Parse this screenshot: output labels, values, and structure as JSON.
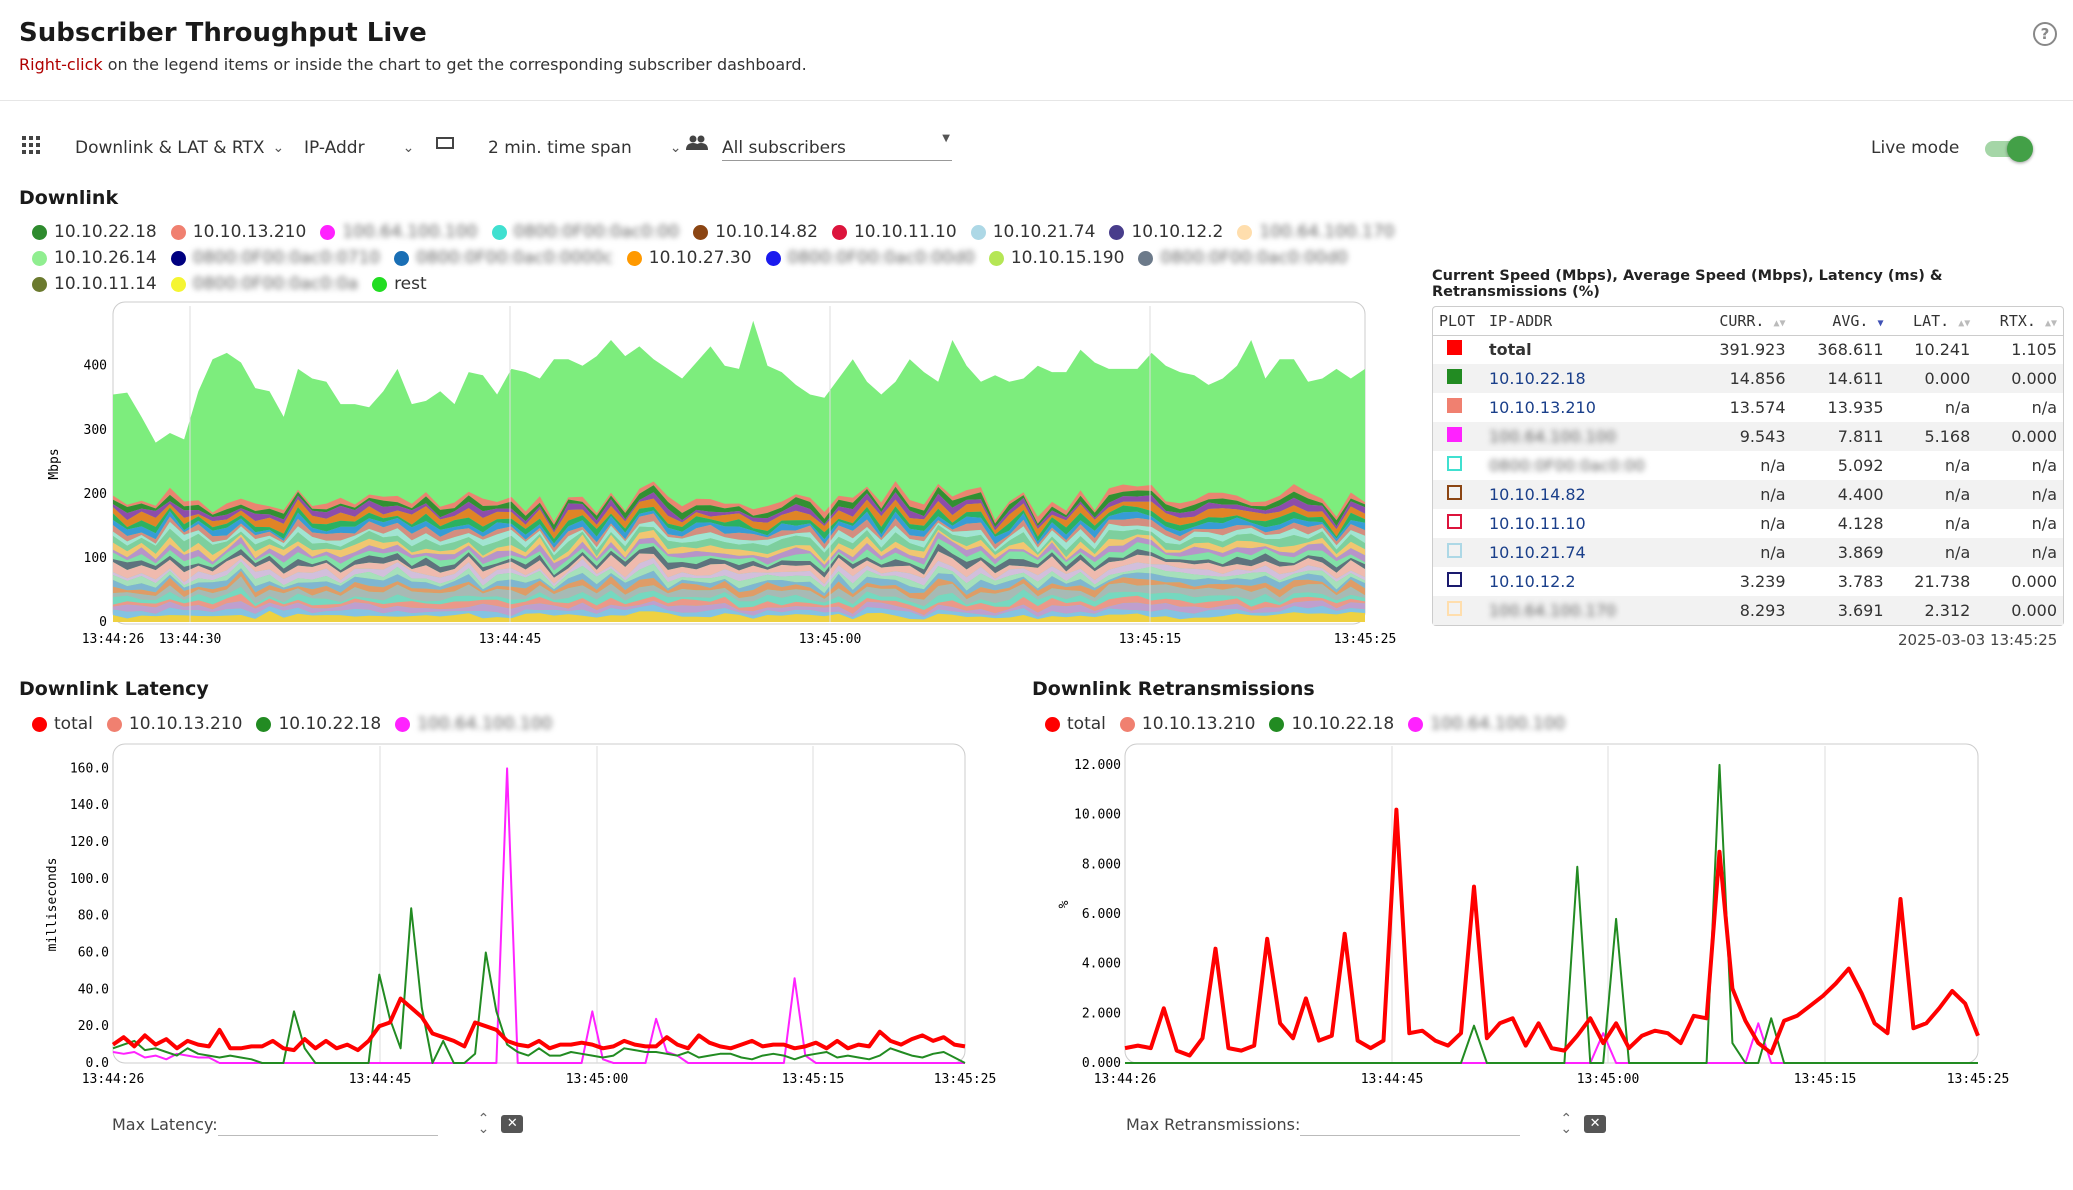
{
  "header": {
    "title": "Subscriber Throughput Live",
    "hint_highlight": "Right-click",
    "hint_rest": " on the legend items or inside the chart to get the corresponding subscriber dashboard.",
    "help_glyph": "?"
  },
  "toolbar": {
    "view_select": "Downlink & LAT & RTX",
    "id_select": "IP-Addr",
    "time_span": "2 min. time span",
    "subscribers": "All subscribers",
    "live_mode_label": "Live mode",
    "live_mode_on": true
  },
  "downlink": {
    "title": "Downlink",
    "legend": [
      {
        "label": "10.10.22.18",
        "color": "#2e8b2e"
      },
      {
        "label": "10.10.13.210",
        "color": "#f08070"
      },
      {
        "label": "100.64.100.100",
        "color": "#ff22ff",
        "blurred": true
      },
      {
        "label": "0800:0F00:0ac0:00",
        "color": "#40e0d0",
        "blurred": true
      },
      {
        "label": "10.10.14.82",
        "color": "#8b4513"
      },
      {
        "label": "10.10.11.10",
        "color": "#dc143c"
      },
      {
        "label": "10.10.21.74",
        "color": "#add8e6"
      },
      {
        "label": "10.10.12.2",
        "color": "#483d8b"
      },
      {
        "label": "100.64.100.170",
        "color": "#ffdead",
        "blurred": true
      },
      {
        "label": "10.10.26.14",
        "color": "#90ee90"
      },
      {
        "label": "0800:0F00:0ac0:0710",
        "color": "#000080",
        "blurred": true
      },
      {
        "label": "0800:0F00:0ac0:0000c",
        "color": "#1a6fb5",
        "blurred": true
      },
      {
        "label": "10.10.27.30",
        "color": "#ff9900"
      },
      {
        "label": "0800:0F00:0ac0:00d0",
        "color": "#1a1aee",
        "blurred": true
      },
      {
        "label": "10.10.15.190",
        "color": "#b5e655"
      },
      {
        "label": "0800:0F00:0ac0:00d0",
        "color": "#6c7a8a",
        "blurred": true
      },
      {
        "label": "10.10.11.14",
        "color": "#6b7a2e"
      },
      {
        "label": "0800:0F00:0ac0:0a",
        "color": "#f5f532",
        "blurred": true
      },
      {
        "label": "rest",
        "color": "#22dd22"
      }
    ],
    "ylabel": "Mbps",
    "yticks": [
      "400",
      "300",
      "200",
      "100",
      "0"
    ],
    "xticks": [
      "13:44:26",
      "13:44:30",
      "13:44:45",
      "13:45:00",
      "13:45:15",
      "13:45:25"
    ]
  },
  "table": {
    "caption": "Current Speed (Mbps), Average Speed (Mbps), Latency (ms) & Retransmissions (%)",
    "columns": [
      "PLOT",
      "IP-ADDR",
      "CURR.",
      "AVG.",
      "LAT.",
      "RTX."
    ],
    "rows": [
      {
        "color": "#ff0000",
        "filled": true,
        "ip": "total",
        "curr": "391.923",
        "avg": "368.611",
        "lat": "10.241",
        "rtx": "1.105",
        "bold": true
      },
      {
        "color": "#228b22",
        "filled": true,
        "ip": "10.10.22.18",
        "curr": "14.856",
        "avg": "14.611",
        "lat": "0.000",
        "rtx": "0.000"
      },
      {
        "color": "#f08070",
        "filled": true,
        "ip": "10.10.13.210",
        "curr": "13.574",
        "avg": "13.935",
        "lat": "n/a",
        "rtx": "n/a"
      },
      {
        "color": "#ff22ff",
        "filled": true,
        "ip": "100.64.100.100",
        "blurred": true,
        "curr": "9.543",
        "avg": "7.811",
        "lat": "5.168",
        "rtx": "0.000"
      },
      {
        "color": "#40e0d0",
        "filled": false,
        "ip": "0800:0F00:0ac0:00",
        "blurred": true,
        "curr": "n/a",
        "avg": "5.092",
        "lat": "n/a",
        "rtx": "n/a"
      },
      {
        "color": "#8b4513",
        "filled": false,
        "ip": "10.10.14.82",
        "curr": "n/a",
        "avg": "4.400",
        "lat": "n/a",
        "rtx": "n/a"
      },
      {
        "color": "#dc143c",
        "filled": false,
        "ip": "10.10.11.10",
        "curr": "n/a",
        "avg": "4.128",
        "lat": "n/a",
        "rtx": "n/a"
      },
      {
        "color": "#add8e6",
        "filled": false,
        "ip": "10.10.21.74",
        "curr": "n/a",
        "avg": "3.869",
        "lat": "n/a",
        "rtx": "n/a"
      },
      {
        "color": "#1a1a6e",
        "filled": false,
        "ip": "10.10.12.2",
        "curr": "3.239",
        "avg": "3.783",
        "lat": "21.738",
        "rtx": "0.000"
      },
      {
        "color": "#ffdead",
        "filled": false,
        "ip": "100.64.100.170",
        "blurred": true,
        "curr": "8.293",
        "avg": "3.691",
        "lat": "2.312",
        "rtx": "0.000"
      }
    ],
    "timestamp": "2025-03-03 13:45:25"
  },
  "latency": {
    "title": "Downlink Latency",
    "legend": [
      {
        "label": "total",
        "color": "#ff0000"
      },
      {
        "label": "10.10.13.210",
        "color": "#f08070"
      },
      {
        "label": "10.10.22.18",
        "color": "#228b22"
      },
      {
        "label": "100.64.100.100",
        "color": "#ff22ff",
        "blurred": true
      }
    ],
    "ylabel": "milliseconds",
    "yticks": [
      "160.0",
      "140.0",
      "120.0",
      "100.0",
      "80.0",
      "60.0",
      "40.0",
      "20.0",
      "0.0"
    ],
    "xticks": [
      "13:44:26",
      "13:44:45",
      "13:45:00",
      "13:45:15",
      "13:45:25"
    ],
    "max_label": "Max Latency:"
  },
  "retrans": {
    "title": "Downlink Retransmissions",
    "legend": [
      {
        "label": "total",
        "color": "#ff0000"
      },
      {
        "label": "10.10.13.210",
        "color": "#f08070"
      },
      {
        "label": "10.10.22.18",
        "color": "#228b22"
      },
      {
        "label": "100.64.100.100",
        "color": "#ff22ff",
        "blurred": true
      }
    ],
    "ylabel": "%",
    "yticks": [
      "12.000",
      "10.000",
      "8.000",
      "6.000",
      "4.000",
      "2.000",
      "0.000"
    ],
    "xticks": [
      "13:44:26",
      "13:44:45",
      "13:45:00",
      "13:45:15",
      "13:45:25"
    ],
    "max_label": "Max Retransmissions:"
  },
  "chart_data": [
    {
      "type": "area",
      "title": "Downlink",
      "ylabel": "Mbps",
      "ylim": [
        0,
        490
      ],
      "stacked": true,
      "x_range": [
        "13:44:26",
        "13:45:25"
      ],
      "total": [
        355,
        358,
        320,
        280,
        295,
        285,
        360,
        410,
        420,
        405,
        365,
        360,
        320,
        395,
        380,
        375,
        340,
        340,
        335,
        360,
        395,
        340,
        345,
        360,
        340,
        390,
        385,
        355,
        395,
        390,
        380,
        410,
        410,
        400,
        415,
        440,
        415,
        430,
        410,
        395,
        380,
        405,
        430,
        400,
        395,
        470,
        400,
        390,
        370,
        355,
        350,
        380,
        410,
        375,
        355,
        375,
        410,
        390,
        375,
        440,
        400,
        375,
        385,
        375,
        380,
        400,
        390,
        390,
        425,
        405,
        395,
        395,
        395,
        420,
        400,
        390,
        385,
        370,
        380,
        400,
        440,
        380,
        410,
        410,
        375,
        380,
        395,
        380,
        395
      ],
      "series": [
        {
          "name": "rest",
          "color": "#7ded7d"
        },
        {
          "name": "10.10.26.14",
          "color": "#90ee90"
        },
        {
          "name": "10.10.13.210",
          "color": "#f08070"
        },
        {
          "name": "10.10.22.18",
          "color": "#2e8b2e"
        }
      ]
    },
    {
      "type": "line",
      "title": "Downlink Latency",
      "ylabel": "milliseconds",
      "ylim": [
        0,
        170
      ],
      "series": [
        {
          "name": "total",
          "color": "#ff0000",
          "width": 4,
          "values": [
            10,
            14,
            9,
            15,
            10,
            13,
            8,
            12,
            10,
            9,
            18,
            8,
            8,
            9,
            9,
            12,
            8,
            7,
            13,
            8,
            12,
            8,
            10,
            7,
            12,
            20,
            22,
            35,
            30,
            25,
            16,
            14,
            12,
            9,
            22,
            20,
            18,
            12,
            10,
            9,
            12,
            8,
            10,
            10,
            11,
            10,
            8,
            9,
            12,
            10,
            9,
            9,
            14,
            10,
            8,
            15,
            11,
            9,
            8,
            10,
            12,
            9,
            10,
            10,
            8,
            9,
            11,
            8,
            12,
            8,
            10,
            9,
            17,
            12,
            10,
            13,
            15,
            12,
            14,
            10,
            9
          ]
        },
        {
          "name": "10.10.22.18",
          "color": "#228b22",
          "width": 2,
          "values": [
            8,
            10,
            12,
            7,
            8,
            6,
            4,
            8,
            5,
            4,
            3,
            4,
            3,
            2,
            0,
            0,
            0,
            28,
            8,
            0,
            0,
            0,
            0,
            0,
            0,
            48,
            24,
            8,
            84,
            30,
            0,
            12,
            0,
            0,
            5,
            60,
            28,
            10,
            6,
            4,
            8,
            4,
            4,
            6,
            5,
            4,
            3,
            4,
            8,
            7,
            6,
            6,
            5,
            4,
            6,
            3,
            4,
            5,
            5,
            3,
            2,
            4,
            5,
            4,
            2,
            4,
            5,
            6,
            3,
            4,
            3,
            2,
            4,
            8,
            6,
            4,
            3,
            5,
            6,
            3,
            0
          ]
        },
        {
          "name": "100.64.100.100",
          "color": "#ff22ff",
          "width": 2,
          "values": [
            6,
            5,
            6,
            3,
            4,
            2,
            5,
            4,
            3,
            3,
            0,
            0,
            0,
            0,
            0,
            0,
            0,
            0,
            0,
            0,
            0,
            0,
            0,
            0,
            0,
            0,
            0,
            0,
            0,
            0,
            0,
            0,
            0,
            0,
            0,
            0,
            0,
            160,
            0,
            0,
            0,
            0,
            0,
            0,
            0,
            28,
            2,
            0,
            0,
            0,
            0,
            24,
            6,
            4,
            0,
            0,
            0,
            0,
            0,
            0,
            0,
            0,
            0,
            0,
            46,
            4,
            0,
            0,
            0,
            0,
            0,
            0,
            0,
            0,
            0,
            0,
            0,
            0,
            0,
            0,
            0
          ]
        }
      ]
    },
    {
      "type": "line",
      "title": "Downlink Retransmissions",
      "ylabel": "%",
      "ylim": [
        0,
        12.6
      ],
      "series": [
        {
          "name": "total",
          "color": "#ff0000",
          "width": 4,
          "values": [
            0.6,
            0.7,
            0.6,
            2.2,
            0.5,
            0.3,
            1.0,
            4.6,
            0.6,
            0.5,
            0.7,
            5.0,
            1.6,
            1.0,
            2.6,
            0.9,
            1.1,
            5.2,
            0.9,
            0.6,
            0.9,
            10.2,
            1.2,
            1.3,
            0.9,
            0.7,
            1.2,
            7.1,
            1.0,
            1.6,
            1.8,
            0.7,
            1.6,
            0.6,
            0.5,
            1.1,
            1.8,
            0.8,
            1.6,
            0.6,
            1.1,
            1.3,
            1.2,
            0.8,
            1.9,
            1.8,
            8.5,
            3.0,
            1.7,
            0.8,
            0.4,
            1.7,
            1.9,
            2.3,
            2.7,
            3.2,
            3.8,
            2.8,
            1.6,
            1.2,
            6.6,
            1.4,
            1.6,
            2.2,
            2.9,
            2.4,
            1.1
          ]
        },
        {
          "name": "10.10.22.18",
          "color": "#228b22",
          "width": 2,
          "values": [
            0,
            0,
            0,
            0,
            0,
            0,
            0,
            0,
            0,
            0,
            0,
            0,
            0,
            0,
            0,
            0,
            0,
            0,
            0,
            0,
            0,
            0,
            0,
            0,
            0,
            0,
            0,
            1.5,
            0,
            0,
            0,
            0,
            0,
            0,
            0,
            7.9,
            0,
            0,
            5.8,
            0,
            0,
            0,
            0,
            0,
            0,
            0,
            12.0,
            0.8,
            0,
            0,
            1.8,
            0,
            0,
            0,
            0,
            0,
            0,
            0,
            0,
            0,
            0,
            0,
            0,
            0,
            0,
            0,
            0
          ]
        },
        {
          "name": "100.64.100.100",
          "color": "#ff22ff",
          "width": 2,
          "values": [
            0,
            0,
            0,
            0,
            0,
            0,
            0,
            0,
            0,
            0,
            0,
            0,
            0,
            0,
            0,
            0,
            0,
            0,
            0,
            0,
            0,
            0,
            0,
            0,
            0,
            0,
            0,
            0,
            0,
            0,
            0,
            0,
            0,
            0,
            0,
            0,
            0,
            1.2,
            0,
            0,
            0,
            0,
            0,
            0,
            0,
            0,
            0,
            0,
            0,
            1.6,
            0,
            0,
            0,
            0,
            0,
            0,
            0,
            0,
            0,
            0,
            0,
            0,
            0,
            0,
            0,
            0,
            0
          ]
        }
      ]
    }
  ]
}
